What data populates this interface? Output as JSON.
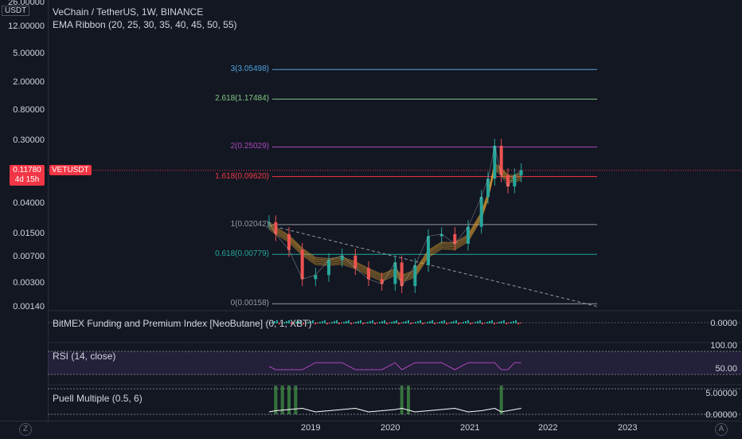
{
  "header": {
    "title": "VeChain / TetherUS, 1W, BINANCE",
    "indicator": "EMA Ribbon (20, 25, 30, 35, 40, 45, 50, 55)",
    "ticker": "VETUSDT"
  },
  "price_axis": {
    "currency": "USDT",
    "ticks": [
      "26.00000",
      "12.00000",
      "5.00000",
      "2.00000",
      "0.80000",
      "0.30000",
      "0.04000",
      "0.01500",
      "0.00700",
      "0.00300",
      "0.00140"
    ],
    "current_price": "0.11780",
    "countdown": "4d 15h"
  },
  "fib_levels": [
    {
      "label": "3(3.05498)",
      "color": "#4fa3e0"
    },
    {
      "label": "2.618(1.17484)",
      "color": "#81c784"
    },
    {
      "label": "2(0.25029)",
      "color": "#ab47bc"
    },
    {
      "label": "1.618(0.09620)",
      "color": "#f23645"
    },
    {
      "label": "1(0.02042)",
      "color": "#9598a1"
    },
    {
      "label": "0.618(0.00779)",
      "color": "#26a69a"
    },
    {
      "label": "0(0.00158)",
      "color": "#9598a1"
    }
  ],
  "panes": {
    "bitmex": {
      "label": "BitMEX Funding and Premium Index [NeoButane] (0, 1, XBT)",
      "value": "0.0000"
    },
    "rsi": {
      "label": "RSI (14, close)",
      "top": "100.00",
      "mid": "50.00"
    },
    "puell": {
      "label": "Puell Multiple (0.5, 6)",
      "top": "5.00000",
      "bottom": "0.00000"
    }
  },
  "x_axis": [
    "2019",
    "2020",
    "2021",
    "2022",
    "2023"
  ],
  "corner_buttons": {
    "left": "Z",
    "right": "A"
  },
  "colors": {
    "up": "#26a69a",
    "down": "#ef5350",
    "background": "#131722",
    "ribbon": "#e0a030"
  },
  "chart_data": {
    "type": "line",
    "title": "VeChain / TetherUS, 1W, BINANCE",
    "y_scale": "log",
    "ylim": [
      0.0014,
      26
    ],
    "x": [
      "2018-07",
      "2018-08",
      "2018-10",
      "2018-12",
      "2019-02",
      "2019-04",
      "2019-06",
      "2019-08",
      "2019-10",
      "2019-12",
      "2020-02",
      "2020-03",
      "2020-05",
      "2020-07",
      "2020-09",
      "2020-11",
      "2021-01",
      "2021-03",
      "2021-04",
      "2021-05",
      "2021-06",
      "2021-07",
      "2021-08",
      "2021-09"
    ],
    "series": [
      {
        "values": [
          0.022,
          0.015,
          0.009,
          0.0035,
          0.004,
          0.0065,
          0.0075,
          0.005,
          0.0035,
          0.003,
          0.006,
          0.0028,
          0.0055,
          0.014,
          0.015,
          0.011,
          0.019,
          0.05,
          0.09,
          0.26,
          0.1,
          0.07,
          0.1,
          0.1178
        ]
      }
    ],
    "fib_values": [
      3.05498,
      1.17484,
      0.25029,
      0.0962,
      0.02042,
      0.00779,
      0.00158
    ]
  }
}
